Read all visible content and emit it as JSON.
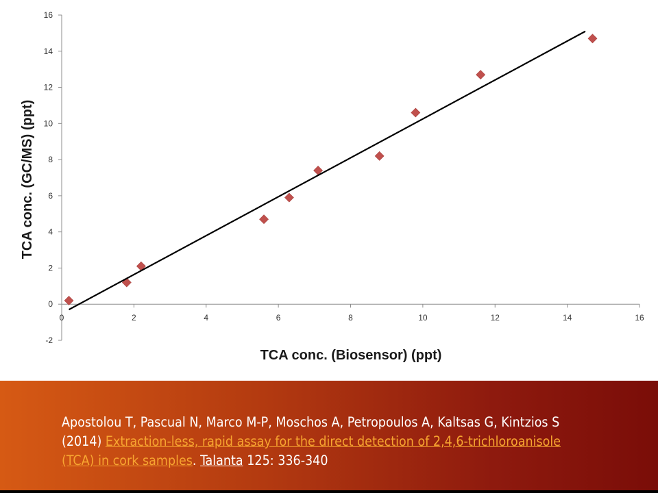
{
  "chart_data": {
    "type": "scatter",
    "xlabel": "TCA conc. (Biosensor)  (ppt)",
    "ylabel": "TCA conc. (GC/MS) (ppt)",
    "xlim": [
      0,
      16
    ],
    "ylim": [
      -2,
      16
    ],
    "xticks": [
      0,
      2,
      4,
      6,
      8,
      10,
      12,
      14,
      16
    ],
    "yticks": [
      -2,
      0,
      2,
      4,
      6,
      8,
      10,
      12,
      14,
      16
    ],
    "xtick_labels": [
      "0",
      "2",
      "4",
      "6",
      "8",
      "10",
      "12",
      "14",
      "16"
    ],
    "ytick_labels": [
      "-2",
      "0",
      "2",
      "4",
      "6",
      "8",
      "10",
      "12",
      "14",
      "16"
    ],
    "grid": false,
    "marker_color": "#c0504d",
    "marker_shape": "diamond",
    "points": [
      {
        "x": 0.2,
        "y": 0.2
      },
      {
        "x": 1.8,
        "y": 1.2
      },
      {
        "x": 2.2,
        "y": 2.1
      },
      {
        "x": 5.6,
        "y": 4.7
      },
      {
        "x": 6.3,
        "y": 5.9
      },
      {
        "x": 7.1,
        "y": 7.4
      },
      {
        "x": 8.8,
        "y": 8.2
      },
      {
        "x": 9.8,
        "y": 10.6
      },
      {
        "x": 11.6,
        "y": 12.7
      },
      {
        "x": 14.7,
        "y": 14.7
      }
    ],
    "trendline": {
      "x": [
        0.2,
        14.5
      ],
      "y": [
        -0.3,
        15.1
      ],
      "color": "#000000"
    }
  },
  "citation": {
    "authors": "Apostolou T, Pascual N, Marco M-P, Moschos A, Petropoulos A, Kaltsas G, Kintzios S (2014)",
    "article_title": "Extraction-less, rapid assay for the direct detection of 2,4,6-trichloroanisole (TCA) in cork samples",
    "after_title": ".",
    "journal": "Talanta",
    "volume_pages": "125: 336-340"
  },
  "colors": {
    "link_article": "#f7a530",
    "caption_gradient_start": "#d65a14",
    "caption_gradient_end": "#7a0d08"
  }
}
